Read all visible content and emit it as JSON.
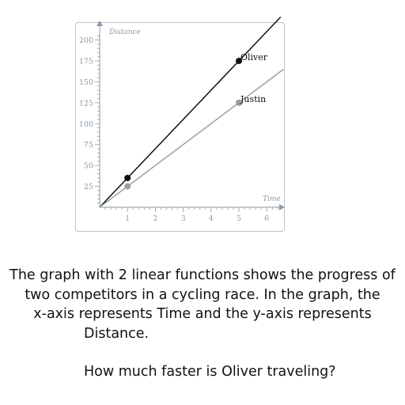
{
  "question": {
    "lines": [
      "The graph with 2 linear functions shows the progress of",
      "two competitors in a cycling race. In the graph, the",
      "x-axis represents Time and the y-axis represents",
      "Distance."
    ],
    "ask": "How much faster is Oliver traveling?"
  },
  "chart_data": {
    "type": "line",
    "title": "",
    "xlabel": "Time",
    "ylabel": "Distance",
    "xlim": [
      0,
      6.6
    ],
    "ylim": [
      0,
      210
    ],
    "x_ticks": [
      1,
      2,
      3,
      4,
      5,
      6
    ],
    "y_ticks": [
      25,
      50,
      75,
      100,
      125,
      150,
      175,
      200
    ],
    "grid": false,
    "series": [
      {
        "name": "Oliver",
        "color": "#111111",
        "slope": 35,
        "points": [
          {
            "x": 1,
            "y": 35
          },
          {
            "x": 5,
            "y": 175
          }
        ]
      },
      {
        "name": "Justin",
        "color": "#9aa0a0",
        "slope": 25,
        "points": [
          {
            "x": 1,
            "y": 25
          },
          {
            "x": 5,
            "y": 125
          }
        ]
      }
    ]
  }
}
